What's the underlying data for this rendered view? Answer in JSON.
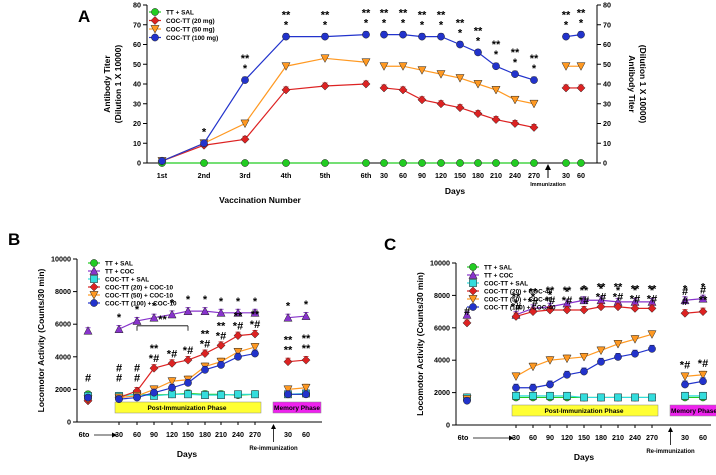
{
  "chart_data": [
    {
      "type": "line",
      "panel_label": "A",
      "xlabel": "Vaccination Number",
      "xlabel_right": "Days",
      "ylabel_left": [
        "Antibody Titer",
        "(Dilution 1 X 10000)"
      ],
      "ylabel_right": [
        "Antibody Titer",
        "(Dilution 1 X 10000)"
      ],
      "ylim": [
        0,
        80
      ],
      "yticks": [
        "0",
        "10",
        "20",
        "30",
        "40",
        "50",
        "60",
        "70",
        "80"
      ],
      "vaccination_categories": [
        "1st",
        "2nd",
        "3rd",
        "4th",
        "5th",
        "6th"
      ],
      "day_categories": [
        "30",
        "60",
        "90",
        "120",
        "150",
        "180",
        "210",
        "240",
        "270"
      ],
      "post_categories": [
        "30",
        "60"
      ],
      "arrow_label": "Immunization",
      "series": [
        {
          "name": "TT + SAL",
          "color": "#22cc22",
          "marker": "circle",
          "vaccination": [
            0,
            0,
            0,
            0,
            0,
            0
          ],
          "days": [
            0,
            0,
            0,
            0,
            0,
            0,
            0,
            0,
            0
          ],
          "post": [
            0,
            0
          ]
        },
        {
          "name": "COC-TT (20 mg)",
          "color": "#dd2222",
          "marker": "diamond",
          "vaccination": [
            1,
            9,
            12,
            37,
            39,
            40
          ],
          "days": [
            38,
            37,
            32,
            30,
            28,
            25,
            22,
            20,
            18
          ],
          "post": [
            38,
            38
          ]
        },
        {
          "name": "COC-TT (50 mg)",
          "color": "#ff9922",
          "marker": "triangle-down",
          "vaccination": [
            1,
            10,
            20,
            49,
            53,
            51
          ],
          "days": [
            49,
            49,
            47,
            45,
            43,
            40,
            37,
            32,
            30
          ],
          "post": [
            49,
            49
          ]
        },
        {
          "name": "COC-TT (100 mg)",
          "color": "#2233cc",
          "marker": "circle",
          "vaccination": [
            1,
            10,
            42,
            64,
            64,
            65
          ],
          "days": [
            65,
            65,
            64,
            64,
            60,
            56,
            49,
            45,
            42
          ],
          "post": [
            64,
            65
          ]
        }
      ],
      "annotations_vaccination": [
        "",
        "*",
        "**\n*",
        "**\n*",
        "**\n*",
        "**\n*"
      ],
      "annotations_days": [
        "**\n*",
        "**\n*",
        "**\n*",
        "**\n*",
        "**\n*",
        "**\n*",
        "**\n*",
        "**\n*",
        "**\n*"
      ],
      "annotations_post": [
        "**\n*",
        "**\n*"
      ]
    },
    {
      "type": "line",
      "panel_label": "B",
      "xlabel": "Days",
      "ylabel": "Locomotor Activity (Counts/30 min)",
      "ylim": [
        0,
        10000
      ],
      "yticks": [
        "0",
        "2000",
        "4000",
        "6000",
        "8000",
        "10000"
      ],
      "baseline_label": "6to",
      "phase_label": "Post-Immunization Phase",
      "memory_label": "Memory Phase",
      "arrow_label": "Re-immunization",
      "x_categories": [
        "30",
        "60",
        "90",
        "120",
        "150",
        "180",
        "210",
        "240",
        "270"
      ],
      "memory_categories": [
        "30",
        "60"
      ],
      "series": [
        {
          "name": "TT + SAL",
          "color": "#22cc22",
          "marker": "circle",
          "baseline": 1700,
          "values": [
            1600,
            1700,
            1650,
            1700,
            1750,
            1700,
            1700,
            1650,
            1700
          ],
          "memory": [
            1700,
            1700
          ]
        },
        {
          "name": "TT + COC",
          "color": "#8833cc",
          "marker": "triangle-up",
          "baseline": 5600,
          "values": [
            5700,
            6200,
            6400,
            6600,
            6800,
            6800,
            6700,
            6700,
            6700
          ],
          "memory": [
            6400,
            6500
          ]
        },
        {
          "name": "COC-TT + SAL",
          "color": "#33dddd",
          "marker": "square",
          "baseline": 1600,
          "values": [
            1600,
            1700,
            1600,
            1700,
            1700,
            1650,
            1650,
            1700,
            1700
          ],
          "memory": [
            1700,
            1750
          ]
        },
        {
          "name": "COC-TT (20) + COC-10",
          "color": "#dd2222",
          "marker": "diamond",
          "baseline": 1300,
          "values": [
            1500,
            1900,
            3300,
            3600,
            3800,
            4200,
            4700,
            5300,
            5400
          ],
          "memory": [
            3700,
            3800
          ]
        },
        {
          "name": "COC-TT (50) + COC-10",
          "color": "#ff9922",
          "marker": "triangle-down",
          "baseline": 1400,
          "values": [
            1500,
            1600,
            2000,
            2500,
            2600,
            3400,
            3700,
            4300,
            4600
          ],
          "memory": [
            2000,
            2100
          ]
        },
        {
          "name": "COC-TT (100) + COC-10",
          "color": "#2233cc",
          "marker": "circle",
          "baseline": 1500,
          "values": [
            1400,
            1500,
            1800,
            2100,
            2400,
            3200,
            3500,
            4000,
            4200
          ],
          "memory": [
            1700,
            1700
          ]
        }
      ],
      "annotations_top": [
        "*",
        "*",
        "*",
        "*",
        "*",
        "*",
        "*",
        "*",
        "*"
      ],
      "annotations_memory_top": [
        "*",
        "*"
      ],
      "annotations_mid": [
        "",
        "",
        "**\n*#",
        "*#",
        "*#",
        "**\n*#",
        "**\n*#",
        "**\n*#",
        "**\n*#"
      ],
      "annotations_memory_mid": [
        "**\n**",
        "**\n**"
      ],
      "annotations_low": [
        "#\n#",
        "#\n#",
        "",
        "",
        "",
        "",
        "",
        "",
        ""
      ],
      "annotations_baseline": "#",
      "bracket_label": "**"
    },
    {
      "type": "line",
      "panel_label": "C",
      "xlabel": "Days",
      "ylabel": "Locomotor Activity (Counts/30 min)",
      "ylim": [
        0,
        10000
      ],
      "yticks": [
        "0",
        "2000",
        "4000",
        "6000",
        "8000",
        "10000"
      ],
      "baseline_label": "6to",
      "phase_label": "Post-Immunization Phase",
      "memory_label": "Memory Phase",
      "arrow_label": "Re-immunization",
      "x_categories": [
        "30",
        "60",
        "90",
        "120",
        "150",
        "180",
        "210",
        "240",
        "270"
      ],
      "memory_categories": [
        "30",
        "60"
      ],
      "series": [
        {
          "name": "TT + SAL",
          "color": "#22cc22",
          "marker": "circle",
          "baseline": 1700,
          "values": [
            1700,
            1700,
            1700,
            1700,
            1700,
            1700,
            1700,
            1700,
            1700
          ],
          "memory": [
            1700,
            1700
          ]
        },
        {
          "name": "TT + COC",
          "color": "#8833cc",
          "marker": "triangle-up",
          "baseline": 6800,
          "values": [
            6800,
            7200,
            7300,
            7500,
            7700,
            7700,
            7600,
            7600,
            7600
          ],
          "memory": [
            7700,
            7800
          ]
        },
        {
          "name": "COC-TT + SAL",
          "color": "#33dddd",
          "marker": "square",
          "baseline": 1700,
          "values": [
            1800,
            1800,
            1800,
            1800,
            1700,
            1700,
            1700,
            1700,
            1700
          ],
          "memory": [
            1800,
            1800
          ]
        },
        {
          "name": "COC-TT (20) + COC-40",
          "color": "#dd2222",
          "marker": "diamond",
          "baseline": 6300,
          "values": [
            6700,
            7000,
            7100,
            7100,
            7100,
            7300,
            7300,
            7200,
            7200
          ],
          "memory": [
            6900,
            7000
          ]
        },
        {
          "name": "COC-TT (50) + COC-40",
          "color": "#ff9922",
          "marker": "triangle-down",
          "baseline": 1600,
          "values": [
            3000,
            3600,
            4000,
            4100,
            4200,
            4600,
            5000,
            5300,
            5600
          ],
          "memory": [
            3000,
            3100
          ]
        },
        {
          "name": "COC-TT (100) + COC-40",
          "color": "#2233cc",
          "marker": "circle",
          "baseline": 1500,
          "values": [
            2300,
            2300,
            2500,
            3100,
            3300,
            3900,
            4200,
            4400,
            4700
          ],
          "memory": [
            2500,
            2700
          ]
        }
      ],
      "annotations_top": [
        "*",
        "*",
        "*",
        "*",
        "*",
        "*",
        "*",
        "*",
        "*"
      ],
      "annotations_memory_top": [
        "*",
        "*"
      ],
      "annotations_mid": [
        "**\n*#",
        "**\n*#",
        "**\n*#",
        "**\n*#",
        "**\n*#",
        "**\n*#",
        "**\n*#",
        "**\n*#",
        "**\n*#"
      ],
      "annotations_memory_mid": [
        "#\n#",
        "#\n**"
      ],
      "annotations_memory_low": [
        "*#",
        "*#"
      ],
      "annotations_baseline": "#"
    }
  ]
}
